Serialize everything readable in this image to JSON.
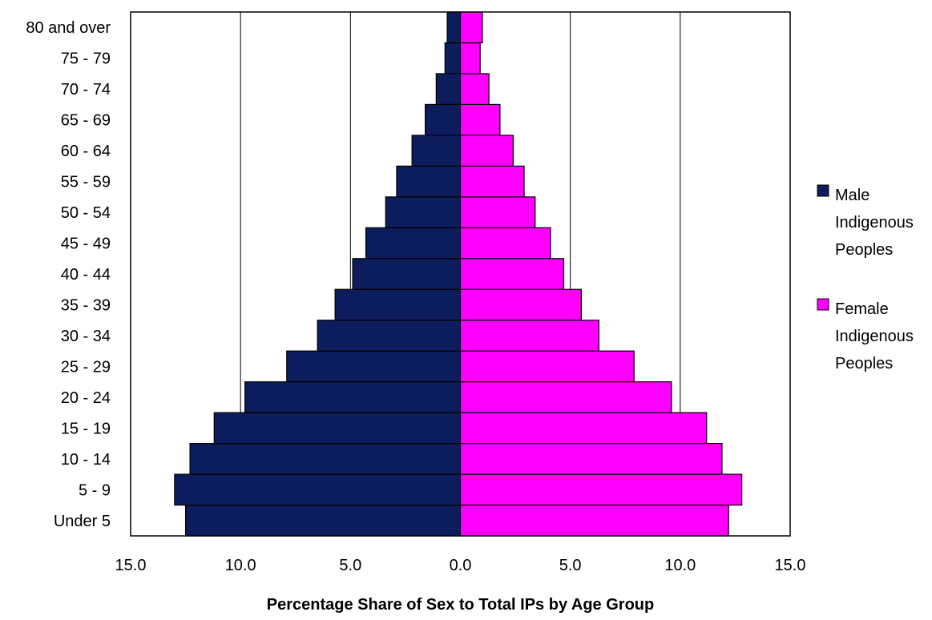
{
  "chart_data": {
    "type": "bar",
    "orientation": "horizontal",
    "title": "",
    "xlabel": "Percentage Share of Sex to Total IPs by Age Group",
    "ylabel": "",
    "categories": [
      "Under 5",
      "5 -  9",
      "10 - 14",
      "15 - 19",
      "20 - 24",
      "25 - 29",
      "30 - 34",
      "35 - 39",
      "40 - 44",
      "45 - 49",
      "50 - 54",
      "55 - 59",
      "60 - 64",
      "65 - 69",
      "70 - 74",
      "75 - 79",
      "80 and over"
    ],
    "series": [
      {
        "name": "Male Indigenous Peoples",
        "color": "#0d1c5c",
        "side": "left",
        "values": [
          12.5,
          13.0,
          12.3,
          11.2,
          9.8,
          7.9,
          6.5,
          5.7,
          4.9,
          4.3,
          3.4,
          2.9,
          2.2,
          1.6,
          1.1,
          0.7,
          0.6
        ]
      },
      {
        "name": "Female Indigenous Peoples",
        "color": "#ff00ff",
        "side": "right",
        "values": [
          12.2,
          12.8,
          11.9,
          11.2,
          9.6,
          7.9,
          6.3,
          5.5,
          4.7,
          4.1,
          3.4,
          2.9,
          2.4,
          1.8,
          1.3,
          0.9,
          1.0
        ]
      }
    ],
    "xlim": [
      -15,
      15
    ],
    "x_ticks": [
      -15,
      -10,
      -5,
      0,
      5,
      10,
      15
    ],
    "x_tick_labels": [
      "15.0",
      "10.0",
      "5.0",
      "0.0",
      "5.0",
      "10.0",
      "15.0"
    ],
    "legend": {
      "placement": "right",
      "entries": [
        {
          "lines": [
            "Male",
            "Indigenous",
            "Peoples"
          ],
          "color": "#0d1c5c"
        },
        {
          "lines": [
            "Female",
            "Indigenous",
            "Peoples"
          ],
          "color": "#ff00ff"
        }
      ]
    },
    "grid": "vertical"
  }
}
